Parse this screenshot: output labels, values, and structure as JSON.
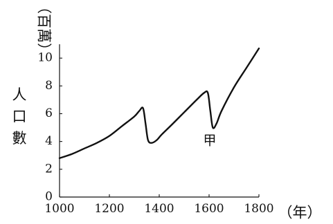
{
  "chart_data": {
    "type": "line",
    "title": "",
    "xlabel": "（年）",
    "ylabel": "人口數",
    "yunit": "（百萬）",
    "xlim": [
      1000,
      1800
    ],
    "ylim": [
      0,
      11
    ],
    "x_ticks": [
      "1000",
      "1200",
      "1400",
      "1600",
      "1800"
    ],
    "y_ticks": [
      "0",
      "2",
      "4",
      "6",
      "8",
      "10"
    ],
    "grid": false,
    "legend": "none",
    "line_color": "#111111",
    "series": [
      {
        "x": [
          1000,
          1050,
          1100,
          1150,
          1200,
          1250,
          1300,
          1320,
          1335,
          1345,
          1355,
          1370,
          1390,
          1410,
          1450,
          1500,
          1550,
          1580,
          1595,
          1605,
          1615,
          1630,
          1650,
          1700,
          1750,
          1800
        ],
        "values": [
          2.8,
          3.1,
          3.5,
          3.9,
          4.4,
          5.1,
          5.8,
          6.2,
          6.4,
          5.3,
          4.1,
          3.9,
          4.1,
          4.5,
          5.2,
          6.1,
          7.0,
          7.5,
          7.5,
          6.2,
          5.0,
          5.3,
          6.2,
          7.9,
          9.3,
          10.7
        ]
      }
    ],
    "annotations": [
      {
        "text": "甲",
        "x": 1625,
        "y": 4.95
      }
    ]
  }
}
